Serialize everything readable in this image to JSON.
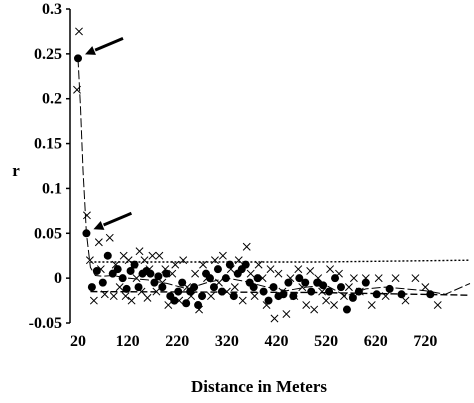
{
  "chart_data": {
    "type": "scatter",
    "title": "",
    "xlabel": "Distance in Meters",
    "ylabel": "r",
    "xlim": [
      20,
      810
    ],
    "ylim": [
      -0.05,
      0.3
    ],
    "x_ticks": [
      "20",
      "120",
      "220",
      "320",
      "420",
      "520",
      "620",
      "720"
    ],
    "y_ticks": [
      "0.3",
      "0.25",
      "0.2",
      "0.15",
      "0.1",
      "0.05",
      "0",
      "-0.05"
    ],
    "grid": false,
    "legend": "none",
    "colors": {
      "series": "#000000"
    },
    "series": [
      {
        "marker": "circle",
        "x": [
          20,
          37,
          48,
          58,
          70,
          80,
          90,
          100,
          110,
          118,
          126,
          134,
          142,
          150,
          158,
          166,
          174,
          182,
          190,
          198,
          206,
          214,
          222,
          230,
          238,
          246,
          254,
          262,
          270,
          278,
          286,
          294,
          302,
          310,
          318,
          326,
          334,
          342,
          350,
          358,
          366,
          374,
          382,
          394,
          404,
          414,
          424,
          434,
          444,
          454,
          466,
          478,
          490,
          502,
          514,
          526,
          538,
          550,
          562,
          574,
          586,
          600,
          622,
          648,
          672,
          730
        ],
        "y": [
          0.245,
          0.05,
          -0.01,
          0.008,
          -0.005,
          0.025,
          0.005,
          0.01,
          0.0,
          -0.012,
          0.008,
          0.015,
          -0.01,
          0.005,
          0.008,
          0.005,
          -0.005,
          0.002,
          -0.01,
          0.005,
          -0.02,
          -0.025,
          -0.015,
          -0.005,
          -0.028,
          -0.015,
          -0.01,
          -0.03,
          -0.02,
          0.005,
          0.0,
          -0.01,
          0.01,
          -0.015,
          0.0,
          0.015,
          -0.02,
          0.005,
          0.01,
          0.015,
          -0.005,
          -0.01,
          0.0,
          -0.015,
          -0.025,
          -0.01,
          -0.02,
          -0.018,
          -0.005,
          -0.02,
          0.0,
          -0.005,
          -0.015,
          -0.005,
          -0.008,
          -0.015,
          0.0,
          -0.01,
          -0.035,
          -0.022,
          -0.015,
          -0.005,
          -0.018,
          -0.012,
          -0.018,
          -0.018
        ]
      },
      {
        "marker": "x",
        "x": [
          18,
          22,
          38,
          44,
          52,
          62,
          66,
          74,
          84,
          92,
          96,
          104,
          112,
          116,
          122,
          128,
          132,
          138,
          144,
          148,
          154,
          160,
          164,
          170,
          178,
          184,
          190,
          196,
          202,
          210,
          216,
          224,
          232,
          240,
          248,
          256,
          264,
          272,
          280,
          288,
          296,
          304,
          312,
          320,
          328,
          336,
          344,
          352,
          360,
          368,
          376,
          384,
          392,
          400,
          408,
          416,
          424,
          432,
          440,
          448,
          456,
          464,
          472,
          480,
          488,
          496,
          504,
          512,
          520,
          528,
          536,
          546,
          556,
          566,
          576,
          588,
          600,
          612,
          626,
          640,
          660,
          680,
          700,
          720,
          745
        ],
        "y": [
          0.21,
          0.275,
          0.07,
          0.02,
          -0.025,
          0.04,
          0.01,
          -0.018,
          0.045,
          -0.02,
          0.015,
          -0.01,
          0.025,
          -0.02,
          0.02,
          -0.025,
          0.015,
          0.0,
          0.03,
          -0.015,
          0.02,
          -0.022,
          0.01,
          0.025,
          -0.015,
          0.025,
          -0.005,
          0.01,
          -0.03,
          0.005,
          0.015,
          -0.025,
          0.02,
          -0.01,
          -0.02,
          0.005,
          -0.035,
          0.015,
          0.0,
          -0.02,
          0.02,
          -0.005,
          0.025,
          -0.015,
          0.01,
          -0.01,
          0.02,
          -0.025,
          0.035,
          0.005,
          -0.02,
          0.015,
          0.0,
          -0.03,
          0.01,
          -0.045,
          0.005,
          -0.015,
          -0.04,
          0.0,
          -0.02,
          0.01,
          -0.01,
          -0.03,
          0.008,
          -0.035,
          0.0,
          -0.015,
          -0.025,
          0.01,
          -0.03,
          0.005,
          -0.02,
          -0.01,
          0.0,
          -0.015,
          0.0,
          -0.03,
          0.0,
          -0.02,
          0.0,
          -0.025,
          0.0,
          -0.01,
          -0.03
        ]
      }
    ],
    "trend_line": {
      "x": [
        20,
        25,
        30,
        37,
        45,
        55,
        70,
        90,
        120,
        160,
        200,
        240,
        280,
        320,
        360,
        400,
        440,
        480,
        520,
        560,
        600,
        640,
        680,
        720,
        760,
        810
      ],
      "y": [
        0.245,
        0.19,
        0.12,
        0.05,
        0.012,
        0.003,
        0.002,
        0.003,
        0.0,
        -0.002,
        -0.006,
        -0.012,
        -0.005,
        0.0,
        -0.004,
        -0.01,
        -0.014,
        -0.01,
        -0.008,
        -0.02,
        -0.012,
        -0.01,
        -0.012,
        -0.014,
        -0.018,
        -0.006
      ]
    },
    "reference_lines": {
      "upper": {
        "style": "dotted",
        "y": [
          0.018,
          0.018,
          0.02
        ]
      },
      "lower": {
        "style": "dashed",
        "y": [
          -0.015,
          -0.016,
          -0.019
        ]
      },
      "x": [
        45,
        500,
        810
      ]
    },
    "annotations": [
      {
        "type": "arrow",
        "points_to": [
          20,
          0.245
        ]
      },
      {
        "type": "arrow",
        "points_to": [
          37,
          0.05
        ]
      }
    ]
  }
}
